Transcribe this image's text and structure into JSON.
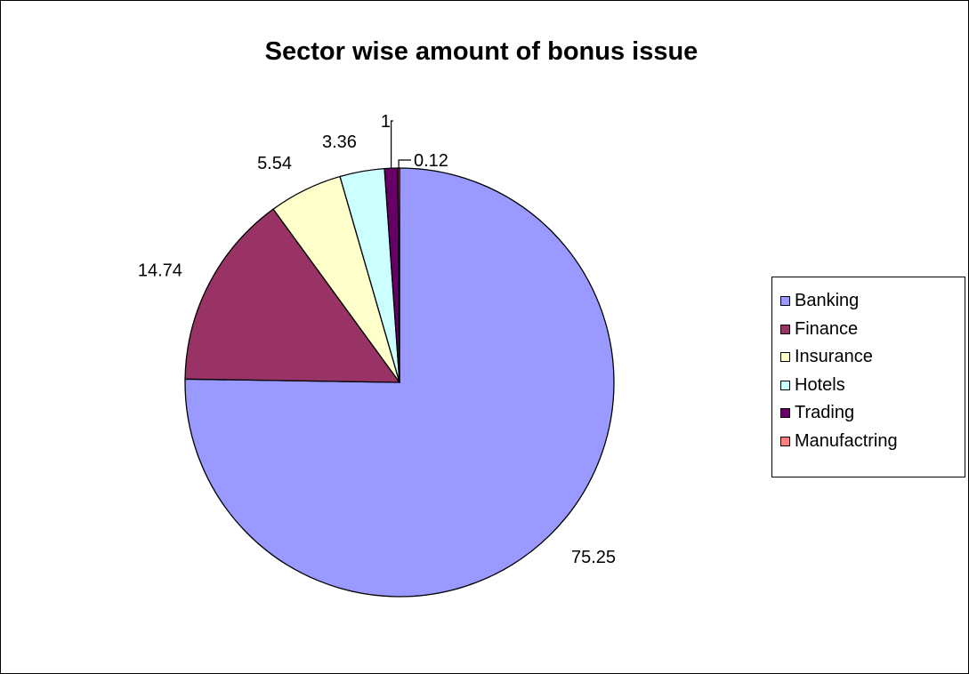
{
  "chart_data": {
    "type": "pie",
    "title": "Sector wise amount of bonus issue",
    "categories": [
      "Banking",
      "Finance",
      "Insurance",
      "Hotels",
      "Trading",
      "Manufactring"
    ],
    "values": [
      75.25,
      14.74,
      5.54,
      3.36,
      1,
      0.12
    ],
    "data_labels": [
      "75.25",
      "14.74",
      "5.54",
      "3.36",
      "1",
      "0.12"
    ],
    "colors": [
      "#9999FF",
      "#993366",
      "#FFFFCC",
      "#CCFFFF",
      "#660066",
      "#FF8080"
    ],
    "start_angle_deg": 0,
    "direction": "clockwise",
    "legend": {
      "position": "right"
    },
    "xlabel": "",
    "ylabel": ""
  }
}
